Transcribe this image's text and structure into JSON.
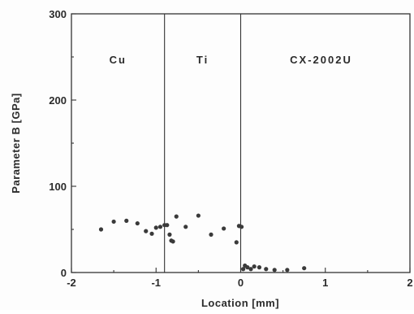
{
  "chart_data": {
    "type": "scatter",
    "title": "",
    "xlabel": "Location [mm]",
    "ylabel": "Parameter B [GPa]",
    "xlim": [
      -2,
      2
    ],
    "ylim": [
      0,
      300
    ],
    "xticks": [
      -2,
      -1,
      0,
      1,
      2
    ],
    "xtick_labels": [
      "-2",
      "-1",
      "0",
      "1",
      "2"
    ],
    "yticks": [
      0,
      100,
      200,
      300
    ],
    "ytick_labels": [
      "0",
      "100",
      "200",
      "300"
    ],
    "grid": false,
    "marker_color": "#3a3a3a",
    "region_boundaries": [
      -0.9,
      0
    ],
    "regions": [
      {
        "label": "Cu",
        "x_center": -1.45
      },
      {
        "label": "Ti",
        "x_center": -0.45
      },
      {
        "label": "CX-2002U",
        "x_center": 0.95
      }
    ],
    "series": [
      {
        "points": [
          {
            "x": -1.65,
            "y": 50
          },
          {
            "x": -1.5,
            "y": 59
          },
          {
            "x": -1.35,
            "y": 60
          },
          {
            "x": -1.22,
            "y": 57
          },
          {
            "x": -1.12,
            "y": 48
          },
          {
            "x": -1.05,
            "y": 45
          },
          {
            "x": -1.0,
            "y": 52
          },
          {
            "x": -0.95,
            "y": 53
          },
          {
            "x": -0.9,
            "y": 55
          },
          {
            "x": -0.87,
            "y": 55
          },
          {
            "x": -0.84,
            "y": 44
          },
          {
            "x": -0.82,
            "y": 37
          },
          {
            "x": -0.8,
            "y": 36
          },
          {
            "x": -0.76,
            "y": 65
          },
          {
            "x": -0.65,
            "y": 53
          },
          {
            "x": -0.5,
            "y": 66
          },
          {
            "x": -0.35,
            "y": 44
          },
          {
            "x": -0.2,
            "y": 51
          },
          {
            "x": -0.05,
            "y": 35
          },
          {
            "x": -0.02,
            "y": 54
          },
          {
            "x": 0.01,
            "y": 53
          },
          {
            "x": 0.03,
            "y": 4
          },
          {
            "x": 0.05,
            "y": 8
          },
          {
            "x": 0.08,
            "y": 6
          },
          {
            "x": 0.12,
            "y": 4
          },
          {
            "x": 0.16,
            "y": 7
          },
          {
            "x": 0.22,
            "y": 6
          },
          {
            "x": 0.3,
            "y": 4
          },
          {
            "x": 0.4,
            "y": 3
          },
          {
            "x": 0.55,
            "y": 3
          },
          {
            "x": 0.75,
            "y": 5
          }
        ]
      }
    ]
  }
}
